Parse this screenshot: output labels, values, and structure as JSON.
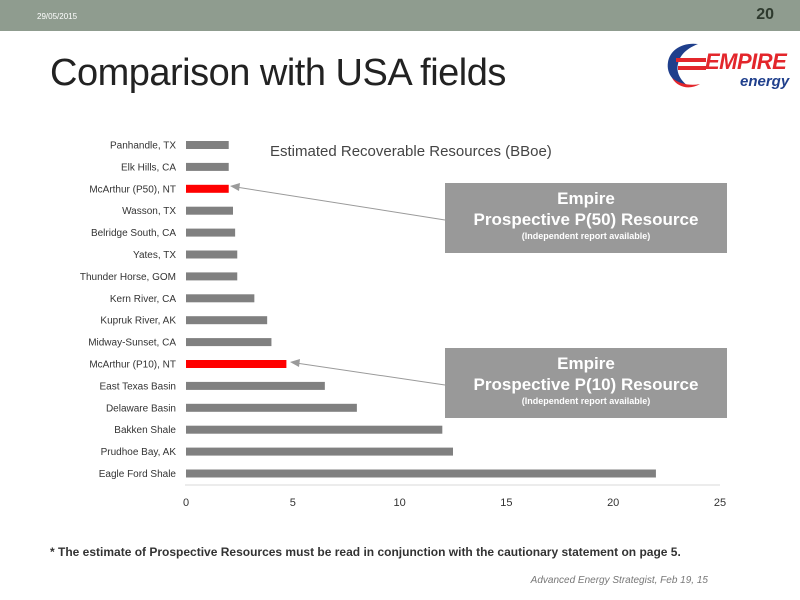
{
  "header": {
    "date": "29/05/2015",
    "page_number": "20"
  },
  "slide_title": "Comparison with USA fields",
  "logo": {
    "word": "EMPIRE",
    "sub": "energy"
  },
  "callouts": [
    {
      "line1": "Empire",
      "line2": "Prospective P(50) Resource",
      "line3": "(Independent report available)"
    },
    {
      "line1": "Empire",
      "line2": "Prospective P(10) Resource",
      "line3": "(Independent report available)"
    }
  ],
  "footnote": "* The estimate of Prospective Resources must be read in conjunction with the cautionary statement on page 5.",
  "source": "Advanced Energy Strategist, Feb 19, 15",
  "colors": {
    "bar": "#808080",
    "highlight": "#ff0000",
    "callout": "#999999",
    "topbar": "#8f9c8f"
  },
  "chart_data": {
    "type": "bar",
    "orientation": "horizontal",
    "title": "Estimated Recoverable Resources (BBoe)",
    "categories": [
      "Panhandle, TX",
      "Elk Hills, CA",
      "McArthur (P50),  NT",
      "Wasson, TX",
      "Belridge South, CA",
      "Yates, TX",
      "Thunder Horse, GOM",
      "Kern River, CA",
      "Kupruk River, AK",
      "Midway-Sunset, CA",
      "McArthur (P10),  NT",
      "East Texas Basin",
      "Delaware Basin",
      "Bakken Shale",
      "Prudhoe Bay, AK",
      "Eagle Ford Shale"
    ],
    "values": [
      2.0,
      2.0,
      2.0,
      2.2,
      2.3,
      2.4,
      2.4,
      3.2,
      3.8,
      4.0,
      4.7,
      6.5,
      8.0,
      12.0,
      12.5,
      22.0
    ],
    "highlighted": [
      "McArthur (P50),  NT",
      "McArthur (P10),  NT"
    ],
    "xlim": [
      0,
      25
    ],
    "xticks": [
      0,
      5,
      10,
      15,
      20,
      25
    ],
    "grid": false,
    "legend": "none"
  }
}
